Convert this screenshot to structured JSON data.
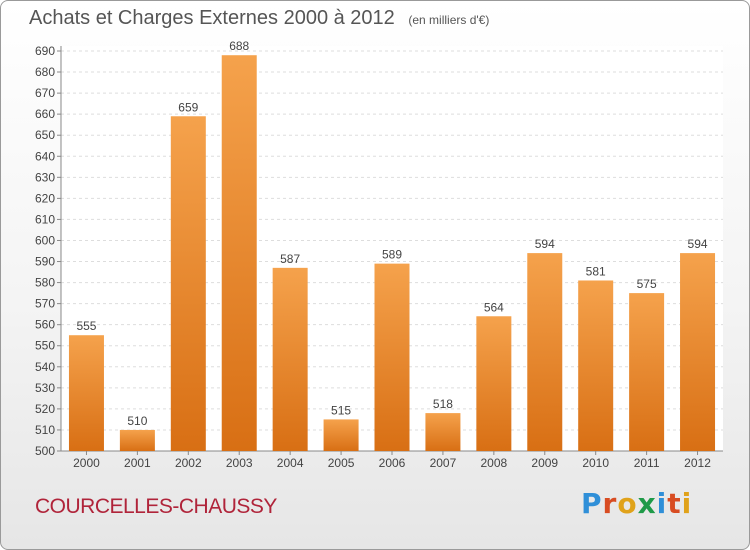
{
  "header": {
    "title": "Achats et Charges Externes 2000 à 2012",
    "subtitle": "(en milliers d'€)"
  },
  "footer": {
    "city": "COURCELLES-CHAUSSY",
    "logo_text": "Proxiti"
  },
  "colors": {
    "bar_light": "#f5a24c",
    "bar_dark": "#d86f14",
    "grid": "#dddddd",
    "text": "#444444",
    "city": "#b0243a",
    "logo": [
      "#2f8fd8",
      "#d84c22",
      "#e0a21a",
      "#1f9a48",
      "#2f8fd8",
      "#d84c22",
      "#e0a21a"
    ]
  },
  "chart_data": {
    "type": "bar",
    "title": "Achats et Charges Externes 2000 à 2012",
    "subtitle": "(en milliers d'€)",
    "categories": [
      "2000",
      "2001",
      "2002",
      "2003",
      "2004",
      "2005",
      "2006",
      "2007",
      "2008",
      "2009",
      "2010",
      "2011",
      "2012"
    ],
    "values": [
      555,
      510,
      659,
      688,
      587,
      515,
      589,
      518,
      564,
      594,
      581,
      575,
      594
    ],
    "ylim": [
      500,
      690
    ],
    "yticks": [
      500,
      510,
      520,
      530,
      540,
      550,
      560,
      570,
      580,
      590,
      600,
      610,
      620,
      630,
      640,
      650,
      660,
      670,
      680,
      690
    ],
    "grid": true,
    "data_labels": true
  }
}
